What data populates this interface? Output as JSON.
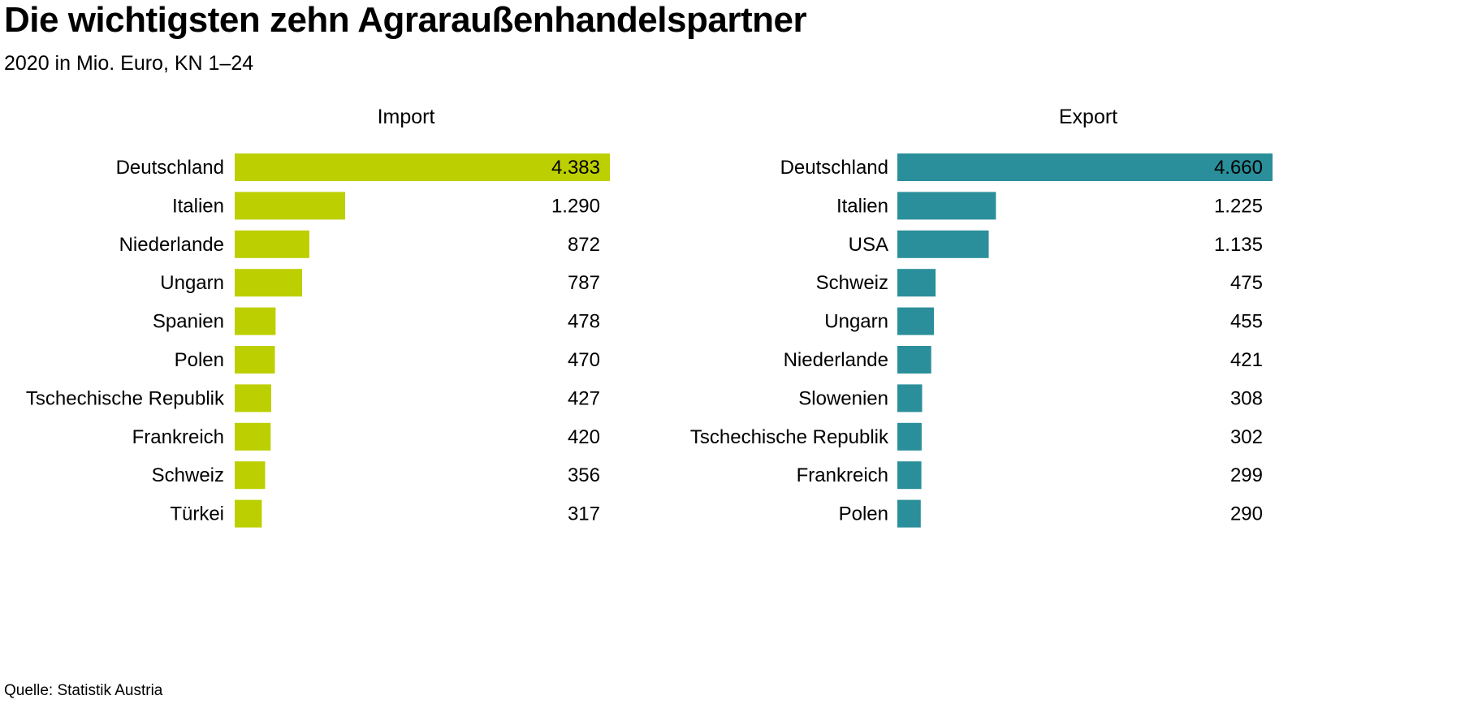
{
  "header": {
    "title": "Die wichtigsten zehn Agraraußenhandelspartner",
    "subtitle": "2020 in Mio. Euro, KN 1–24"
  },
  "footer": {
    "source": "Quelle: Statistik Austria"
  },
  "colors": {
    "import": "#bccf00",
    "export": "#2a8f9a"
  },
  "chart_data": [
    {
      "type": "bar",
      "orientation": "horizontal",
      "title": "Import",
      "categories": [
        "Deutschland",
        "Italien",
        "Niederlande",
        "Ungarn",
        "Spanien",
        "Polen",
        "Tschechische Republik",
        "Frankreich",
        "Schweiz",
        "Türkei"
      ],
      "values": [
        4383,
        1290,
        872,
        787,
        478,
        470,
        427,
        420,
        356,
        317
      ],
      "value_labels": [
        "4.383",
        "1.290",
        "872",
        "787",
        "478",
        "470",
        "427",
        "420",
        "356",
        "317"
      ],
      "xlim": [
        0,
        4383
      ],
      "grid": false,
      "color": "#bccf00"
    },
    {
      "type": "bar",
      "orientation": "horizontal",
      "title": "Export",
      "categories": [
        "Deutschland",
        "Italien",
        "USA",
        "Schweiz",
        "Ungarn",
        "Niederlande",
        "Slowenien",
        "Tschechische Republik",
        "Frankreich",
        "Polen"
      ],
      "values": [
        4660,
        1225,
        1135,
        475,
        455,
        421,
        308,
        302,
        299,
        290
      ],
      "value_labels": [
        "4.660",
        "1.225",
        "1.135",
        "475",
        "455",
        "421",
        "308",
        "302",
        "299",
        "290"
      ],
      "xlim": [
        0,
        4660
      ],
      "grid": false,
      "color": "#2a8f9a"
    }
  ]
}
